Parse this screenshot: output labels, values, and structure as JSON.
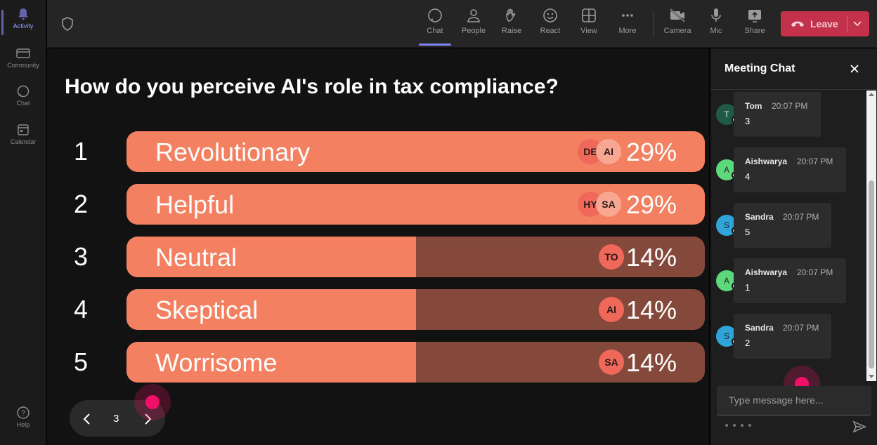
{
  "rail": {
    "items": [
      {
        "label": "Activity",
        "icon": "bell-icon"
      },
      {
        "label": "Community",
        "icon": "community-icon"
      },
      {
        "label": "Chat",
        "icon": "chat-icon"
      },
      {
        "label": "Calendar",
        "icon": "calendar-icon"
      },
      {
        "label": "Help",
        "icon": "help-icon"
      }
    ]
  },
  "toolbar": {
    "chat": "Chat",
    "people": "People",
    "raise": "Raise",
    "react": "React",
    "view": "View",
    "more": "More",
    "camera": "Camera",
    "mic": "Mic",
    "share": "Share",
    "leave": "Leave"
  },
  "poll": {
    "question": "How do you perceive AI's role in tax compliance?",
    "options": [
      {
        "num": "1",
        "label": "Revolutionary",
        "percent": "29%",
        "fill_fraction": 1.0,
        "avatars": [
          "DE",
          "AI"
        ]
      },
      {
        "num": "2",
        "label": "Helpful",
        "percent": "29%",
        "fill_fraction": 1.0,
        "avatars": [
          "HY",
          "SA"
        ]
      },
      {
        "num": "3",
        "label": "Neutral",
        "percent": "14%",
        "fill_fraction": 0.5,
        "avatars": [
          "TO"
        ]
      },
      {
        "num": "4",
        "label": "Skeptical",
        "percent": "14%",
        "fill_fraction": 0.5,
        "avatars": [
          "AI"
        ]
      },
      {
        "num": "5",
        "label": "Worrisome",
        "percent": "14%",
        "fill_fraction": 0.5,
        "avatars": [
          "SA"
        ]
      }
    ],
    "colors": {
      "fill": "#f38161",
      "track": "#84493a"
    }
  },
  "pager": {
    "page": "3"
  },
  "chat": {
    "title": "Meeting Chat",
    "messages": [
      {
        "initial": "T",
        "name": "Tom",
        "time": "20:07 PM",
        "text": "3",
        "avatar_color": "#1e5a45"
      },
      {
        "initial": "A",
        "name": "Aishwarya",
        "time": "20:07 PM",
        "text": "4",
        "avatar_color": "#5dd87a"
      },
      {
        "initial": "S",
        "name": "Sandra",
        "time": "20:07 PM",
        "text": "5",
        "avatar_color": "#2ea4d8"
      },
      {
        "initial": "A",
        "name": "Aishwarya",
        "time": "20:07 PM",
        "text": "1",
        "avatar_color": "#5dd87a"
      },
      {
        "initial": "S",
        "name": "Sandra",
        "time": "20:07 PM",
        "text": "2",
        "avatar_color": "#2ea4d8"
      }
    ],
    "input_placeholder": "Type message here..."
  }
}
